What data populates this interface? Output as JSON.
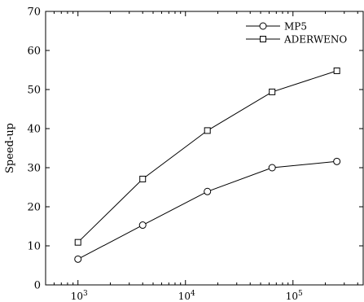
{
  "chart_data": {
    "type": "line",
    "x_scale": "log",
    "x": [
      1000,
      4000,
      16000,
      64000,
      256000
    ],
    "series": [
      {
        "name": "MP5",
        "marker": "circle",
        "values": [
          6.6,
          15.3,
          23.9,
          30.0,
          31.6
        ]
      },
      {
        "name": "ADERWENO",
        "marker": "square",
        "values": [
          10.9,
          27.1,
          39.5,
          49.4,
          54.8
        ]
      }
    ],
    "xlim": [
      500,
      450000
    ],
    "ylim": [
      0,
      70
    ],
    "y_ticks": [
      0,
      10,
      20,
      30,
      40,
      50,
      60,
      70
    ],
    "x_ticks": [
      {
        "value": 1000,
        "base": "10",
        "exp": "3"
      },
      {
        "value": 10000,
        "base": "10",
        "exp": "4"
      },
      {
        "value": 100000,
        "base": "10",
        "exp": "5"
      }
    ],
    "title": "",
    "xlabel": "",
    "ylabel": "Speed-up",
    "legend_position": "top-right",
    "grid": false,
    "line_color": "#000000"
  }
}
